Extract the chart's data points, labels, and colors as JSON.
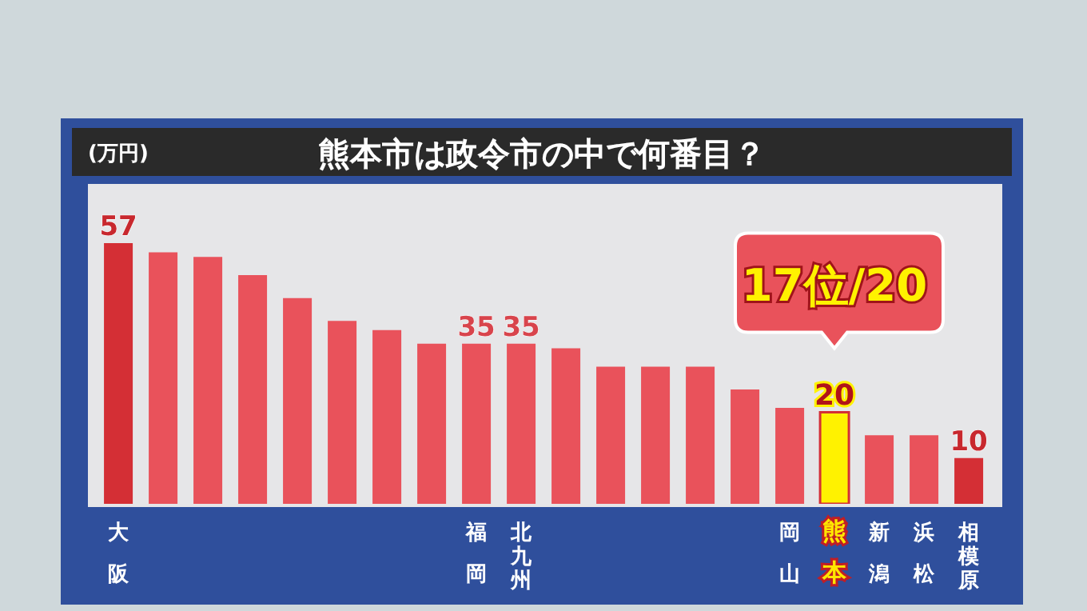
{
  "chart_data": {
    "type": "bar",
    "title": "熊本市は政令市の中で何番目？",
    "ylabel": "(万円)",
    "categories": [
      "大阪",
      null,
      null,
      null,
      null,
      null,
      null,
      null,
      "福岡",
      "北九州",
      null,
      null,
      null,
      null,
      null,
      "岡山",
      "熊本",
      "新潟",
      "浜松",
      "相模原"
    ],
    "values": [
      57,
      55,
      54,
      50,
      45,
      40,
      38,
      35,
      35,
      35,
      34,
      30,
      30,
      30,
      25,
      21,
      20,
      15,
      15,
      10
    ],
    "colors": [
      "#d42f35",
      "#e9525b",
      "#e9525b",
      "#e9525b",
      "#e9525b",
      "#e9525b",
      "#e9525b",
      "#e9525b",
      "#e9525b",
      "#e9525b",
      "#e9525b",
      "#e9525b",
      "#e9525b",
      "#e9525b",
      "#e9525b",
      "#e9525b",
      "#fff200",
      "#e9525b",
      "#e9525b",
      "#d42f35"
    ],
    "value_labels": [
      "57",
      null,
      null,
      null,
      null,
      null,
      null,
      null,
      "35",
      "35",
      null,
      null,
      null,
      null,
      null,
      null,
      "20",
      null,
      null,
      "10"
    ],
    "tick_labels": "x",
    "annotations": [
      {
        "text": "17位/20",
        "x": "熊本",
        "y": 20
      }
    ]
  }
}
